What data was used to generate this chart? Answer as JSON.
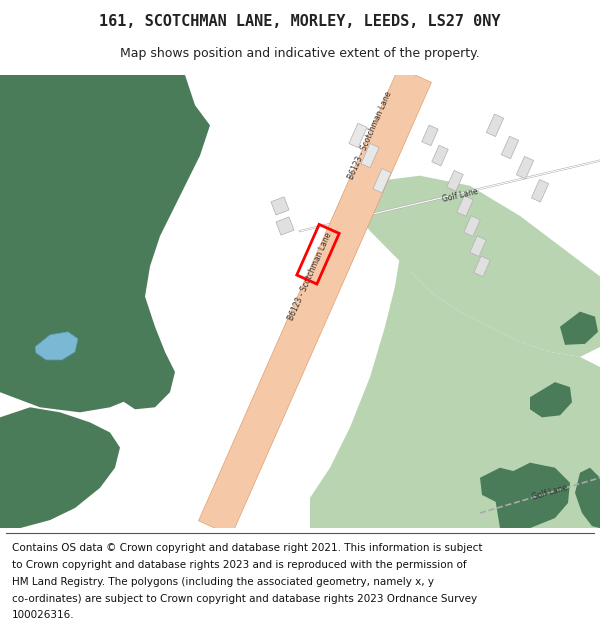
{
  "title": "161, SCOTCHMAN LANE, MORLEY, LEEDS, LS27 0NY",
  "subtitle": "Map shows position and indicative extent of the property.",
  "footer_lines": [
    "Contains OS data © Crown copyright and database right 2021. This information is subject",
    "to Crown copyright and database rights 2023 and is reproduced with the permission of",
    "HM Land Registry. The polygons (including the associated geometry, namely x, y",
    "co-ordinates) are subject to Crown copyright and database rights 2023 Ordnance Survey",
    "100026316."
  ],
  "bg_color": "#ffffff",
  "green_dark": "#4a7c59",
  "green_light": "#b8d4b0",
  "road_color": "#f5c8a8",
  "road_outline": "#e0a070",
  "water_color": "#7ab8d4",
  "plot_color": "#ff0000",
  "title_fontsize": 11,
  "subtitle_fontsize": 9,
  "footer_fontsize": 7.5
}
